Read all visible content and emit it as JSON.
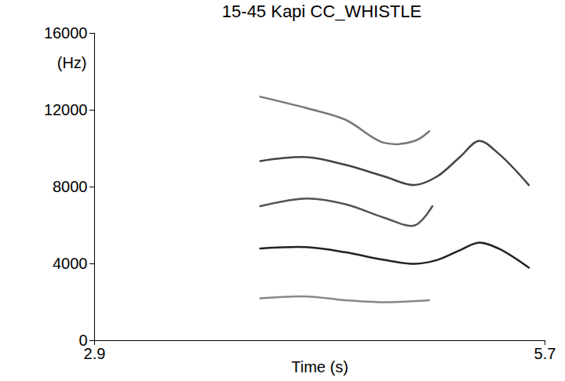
{
  "chart_data": {
    "type": "line",
    "title": "15-45 Kapi CC_WHISTLE",
    "x_label": "Time (s)",
    "y_label": "(Hz)",
    "xlim": [
      2.9,
      5.7
    ],
    "xticks": [
      2.9,
      5.7
    ],
    "ylim": [
      0,
      16000
    ],
    "yticks": [
      0,
      4000,
      8000,
      12000,
      16000
    ],
    "grid": false,
    "series": [
      {
        "color": "#222222",
        "x": [
          3.93,
          4.22,
          4.46,
          4.7,
          4.89,
          5.03,
          5.17,
          5.29,
          5.41,
          5.6
        ],
        "values": [
          4800,
          4870,
          4600,
          4200,
          4000,
          4200,
          4700,
          5100,
          4800,
          3800
        ]
      },
      {
        "color": "#555555",
        "x": [
          3.93,
          4.22,
          4.46,
          4.7,
          4.89,
          5.0
        ],
        "values": [
          7000,
          7400,
          7100,
          6400,
          6000,
          7000
        ]
      },
      {
        "color": "#444444",
        "x": [
          3.93,
          4.22,
          4.46,
          4.7,
          4.89,
          5.03,
          5.17,
          5.29,
          5.41,
          5.6
        ],
        "values": [
          9350,
          9550,
          9150,
          8550,
          8100,
          8550,
          9550,
          10400,
          9750,
          8100
        ]
      },
      {
        "color": "#777777",
        "x": [
          3.93,
          4.22,
          4.46,
          4.7,
          4.89,
          4.98
        ],
        "values": [
          12700,
          12100,
          11500,
          10300,
          10400,
          10900
        ]
      },
      {
        "color": "#888888",
        "x": [
          3.93,
          4.22,
          4.46,
          4.7,
          4.98
        ],
        "values": [
          2200,
          2300,
          2100,
          2000,
          2100
        ]
      }
    ]
  }
}
